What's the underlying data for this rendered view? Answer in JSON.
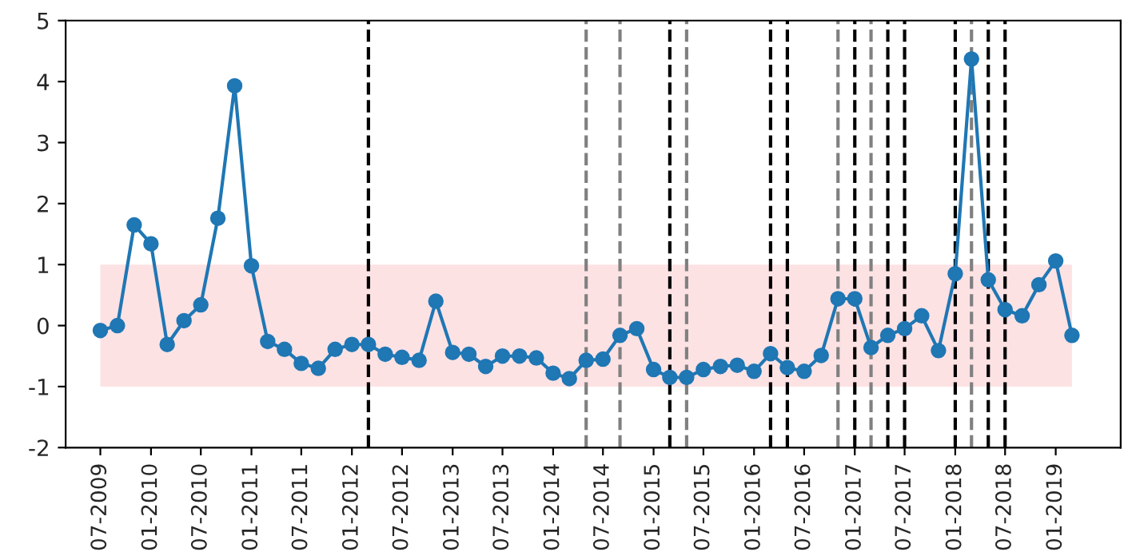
{
  "chart_data": {
    "type": "line",
    "x": [
      "2009-07",
      "2009-09",
      "2009-11",
      "2010-01",
      "2010-03",
      "2010-05",
      "2010-07",
      "2010-09",
      "2010-11",
      "2011-01",
      "2011-03",
      "2011-05",
      "2011-07",
      "2011-09",
      "2011-11",
      "2012-01",
      "2012-03",
      "2012-05",
      "2012-07",
      "2012-09",
      "2012-11",
      "2013-01",
      "2013-03",
      "2013-05",
      "2013-07",
      "2013-09",
      "2013-11",
      "2014-01",
      "2014-03",
      "2014-05",
      "2014-07",
      "2014-09",
      "2014-11",
      "2015-01",
      "2015-03",
      "2015-05",
      "2015-07",
      "2015-09",
      "2015-11",
      "2016-01",
      "2016-03",
      "2016-05",
      "2016-07",
      "2016-09",
      "2016-11",
      "2017-01",
      "2017-03",
      "2017-05",
      "2017-07",
      "2017-09",
      "2017-11",
      "2018-01",
      "2018-03",
      "2018-05",
      "2018-07",
      "2018-09",
      "2018-11",
      "2019-01",
      "2019-03"
    ],
    "series": [
      {
        "color": "#1f77b4",
        "values": [
          -0.08,
          0.0,
          1.65,
          1.34,
          -0.31,
          0.08,
          0.34,
          1.76,
          3.93,
          0.98,
          -0.26,
          -0.39,
          -0.62,
          -0.7,
          -0.39,
          -0.31,
          -0.31,
          -0.47,
          -0.52,
          -0.57,
          0.4,
          -0.44,
          -0.47,
          -0.67,
          -0.5,
          -0.5,
          -0.53,
          -0.78,
          -0.87,
          -0.57,
          -0.55,
          -0.16,
          -0.05,
          -0.72,
          -0.85,
          -0.85,
          -0.72,
          -0.67,
          -0.65,
          -0.75,
          -0.46,
          -0.69,
          -0.75,
          -0.49,
          0.44,
          0.44,
          -0.36,
          -0.16,
          -0.05,
          0.16,
          -0.41,
          0.85,
          4.37,
          0.75,
          0.26,
          0.16,
          0.67,
          1.06,
          -0.16
        ]
      }
    ],
    "marker": "circle",
    "line_style": "solid",
    "grid": false,
    "legend": false,
    "xlim": [
      "2009-02-25",
      "2019-08-25"
    ],
    "xticks": [
      {
        "value": "2009-07",
        "label": "07-2009"
      },
      {
        "value": "2010-01",
        "label": "01-2010"
      },
      {
        "value": "2010-07",
        "label": "07-2010"
      },
      {
        "value": "2011-01",
        "label": "01-2011"
      },
      {
        "value": "2011-07",
        "label": "07-2011"
      },
      {
        "value": "2012-01",
        "label": "01-2012"
      },
      {
        "value": "2012-07",
        "label": "07-2012"
      },
      {
        "value": "2013-01",
        "label": "01-2013"
      },
      {
        "value": "2013-07",
        "label": "07-2013"
      },
      {
        "value": "2014-01",
        "label": "01-2014"
      },
      {
        "value": "2014-07",
        "label": "07-2014"
      },
      {
        "value": "2015-01",
        "label": "01-2015"
      },
      {
        "value": "2015-07",
        "label": "07-2015"
      },
      {
        "value": "2016-01",
        "label": "01-2016"
      },
      {
        "value": "2016-07",
        "label": "07-2016"
      },
      {
        "value": "2017-01",
        "label": "01-2017"
      },
      {
        "value": "2017-07",
        "label": "07-2017"
      },
      {
        "value": "2018-01",
        "label": "01-2018"
      },
      {
        "value": "2018-07",
        "label": "07-2018"
      },
      {
        "value": "2019-01",
        "label": "01-2019"
      }
    ],
    "ylim": [
      -2,
      5
    ],
    "yticks": [
      -2,
      -1,
      0,
      1,
      2,
      3,
      4,
      5
    ],
    "bands": [
      {
        "axis": "y",
        "from": -1,
        "to": 1,
        "color": "#fde2e4"
      }
    ],
    "ref_lines": [
      {
        "axis": "x",
        "value": "2012-03",
        "color": "#000000",
        "line_style": "dashed"
      },
      {
        "axis": "x",
        "value": "2014-05",
        "color": "#808080",
        "line_style": "dashed"
      },
      {
        "axis": "x",
        "value": "2014-09",
        "color": "#808080",
        "line_style": "dashed"
      },
      {
        "axis": "x",
        "value": "2015-03",
        "color": "#000000",
        "line_style": "dashed"
      },
      {
        "axis": "x",
        "value": "2015-05",
        "color": "#808080",
        "line_style": "dashed"
      },
      {
        "axis": "x",
        "value": "2016-03",
        "color": "#000000",
        "line_style": "dashed"
      },
      {
        "axis": "x",
        "value": "2016-05",
        "color": "#000000",
        "line_style": "dashed"
      },
      {
        "axis": "x",
        "value": "2016-11",
        "color": "#808080",
        "line_style": "dashed"
      },
      {
        "axis": "x",
        "value": "2017-01",
        "color": "#000000",
        "line_style": "dashed"
      },
      {
        "axis": "x",
        "value": "2017-03",
        "color": "#808080",
        "line_style": "dashed"
      },
      {
        "axis": "x",
        "value": "2017-05",
        "color": "#000000",
        "line_style": "dashed"
      },
      {
        "axis": "x",
        "value": "2017-07",
        "color": "#000000",
        "line_style": "dashed"
      },
      {
        "axis": "x",
        "value": "2018-01",
        "color": "#000000",
        "line_style": "dashed"
      },
      {
        "axis": "x",
        "value": "2018-03",
        "color": "#808080",
        "line_style": "dashed"
      },
      {
        "axis": "x",
        "value": "2018-05",
        "color": "#000000",
        "line_style": "dashed"
      },
      {
        "axis": "x",
        "value": "2018-07",
        "color": "#000000",
        "line_style": "dashed"
      }
    ]
  }
}
